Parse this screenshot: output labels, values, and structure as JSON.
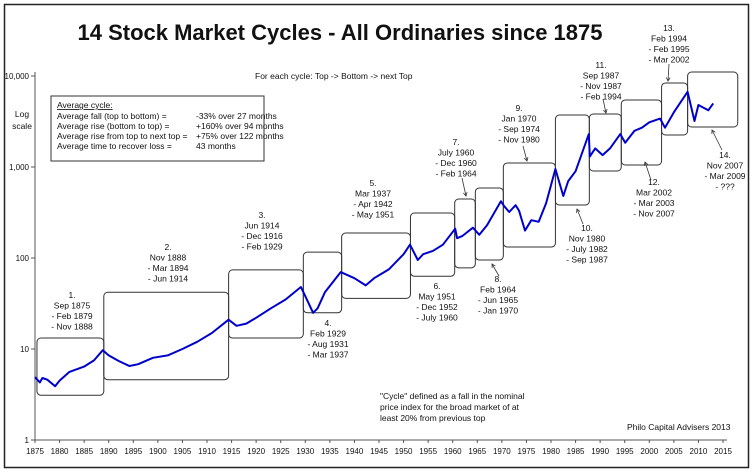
{
  "chart_data": {
    "type": "line",
    "title": "14 Stock Market Cycles - All Ordinaries  since 1875",
    "ylabel": [
      "Log",
      "scale"
    ],
    "xlabel": "",
    "yscale": "log",
    "ylim": [
      1,
      10000
    ],
    "xlim": [
      1875,
      2015
    ],
    "grid": false,
    "line_color": "#0000cc",
    "yticks": [
      1,
      10,
      100,
      1000,
      10000
    ],
    "ytick_labels": [
      "1",
      "10",
      "100",
      "1,000",
      "10,000"
    ],
    "xticks": [
      1875,
      1880,
      1885,
      1890,
      1895,
      1900,
      1905,
      1910,
      1915,
      1920,
      1925,
      1930,
      1935,
      1940,
      1945,
      1950,
      1955,
      1960,
      1965,
      1970,
      1975,
      1980,
      1985,
      1990,
      1995,
      2000,
      2005,
      2010,
      2015
    ],
    "series": [
      {
        "x": [
          1875,
          1876,
          1876.5,
          1877.5,
          1879.1,
          1880,
          1882,
          1885,
          1887,
          1888.8,
          1890,
          1892,
          1894.2,
          1896,
          1899,
          1902,
          1905,
          1908,
          1911,
          1914.4,
          1916,
          1918,
          1920,
          1923,
          1926,
          1929.1,
          1930,
          1931.6,
          1932.5,
          1934,
          1937.2,
          1940,
          1942.3,
          1944,
          1947,
          1950,
          1951.3,
          1952.9,
          1954,
          1956,
          1958,
          1960.5,
          1960.9,
          1962,
          1964.1,
          1965.4,
          1967,
          1969.8,
          1970.5,
          1971.5,
          1972.8,
          1973.5,
          1974.7,
          1976,
          1977.5,
          1979,
          1980.9,
          1982.5,
          1983.5,
          1985,
          1987.7,
          1987.9,
          1989,
          1990.5,
          1992,
          1994.1,
          1995.1,
          1997,
          1998.5,
          2000,
          2002.2,
          2003.2,
          2005,
          2007.8,
          2009.2,
          2010,
          2011,
          2012,
          2013
        ],
        "y": [
          4.9,
          4.3,
          4.8,
          4.6,
          3.9,
          4.5,
          5.6,
          6.4,
          7.5,
          9.7,
          8.5,
          7.4,
          6.5,
          6.8,
          8,
          8.5,
          10,
          12,
          15,
          21,
          18,
          19,
          22,
          28,
          35,
          48,
          38,
          25,
          28,
          42,
          70,
          60,
          50,
          60,
          75,
          110,
          140,
          95,
          110,
          120,
          140,
          210,
          165,
          175,
          215,
          180,
          230,
          420,
          370,
          320,
          380,
          330,
          200,
          260,
          250,
          400,
          950,
          480,
          700,
          900,
          2300,
          1300,
          1600,
          1350,
          1600,
          2300,
          1850,
          2500,
          2700,
          3100,
          3400,
          2700,
          4000,
          6700,
          3200,
          4800,
          4500,
          4200,
          5000
        ]
      }
    ],
    "cycle_boxes": [
      {
        "x": [
          1875.4,
          1889.0
        ],
        "y": [
          3.1,
          13.2
        ]
      },
      {
        "x": [
          1889.0,
          1914.4
        ],
        "y": [
          4.6,
          42
        ]
      },
      {
        "x": [
          1914.4,
          1929.6
        ],
        "y": [
          13.2,
          74
        ]
      },
      {
        "x": [
          1929.6,
          1937.4
        ],
        "y": [
          25,
          116
        ]
      },
      {
        "x": [
          1937.4,
          1951.4
        ],
        "y": [
          36,
          188
        ]
      },
      {
        "x": [
          1951.4,
          1960.4
        ],
        "y": [
          63,
          312
        ]
      },
      {
        "x": [
          1960.4,
          1964.6
        ],
        "y": [
          78,
          445
        ]
      },
      {
        "x": [
          1964.6,
          1970.3
        ],
        "y": [
          95,
          588
        ]
      },
      {
        "x": [
          1970.3,
          1980.9
        ],
        "y": [
          132,
          1107
        ]
      },
      {
        "x": [
          1980.9,
          1987.8
        ],
        "y": [
          382,
          3726
        ]
      },
      {
        "x": [
          1987.8,
          1994.3
        ],
        "y": [
          904,
          3822
        ]
      },
      {
        "x": [
          1994.3,
          2002.5
        ],
        "y": [
          1052,
          5450
        ]
      },
      {
        "x": [
          2002.5,
          2007.8
        ],
        "y": [
          2249,
          8380
        ]
      },
      {
        "x": [
          2007.8,
          2018.0
        ],
        "y": [
          2754,
          11060
        ]
      }
    ],
    "cycle_labels": [
      [
        "1.",
        "Sep 1875",
        "- Feb 1879",
        "- Nov 1888"
      ],
      [
        "2.",
        "Nov 1888",
        "- Mar 1894",
        "- Jun 1914"
      ],
      [
        "3.",
        "Jun 1914",
        "- Dec 1916",
        "- Feb 1929"
      ],
      [
        "4.",
        "Feb  1929",
        "- Aug 1931",
        "- Mar 1937"
      ],
      [
        "5.",
        "Mar 1937",
        "- Apr 1942",
        "- May 1951"
      ],
      [
        "6.",
        "May 1951",
        "- Dec 1952",
        "- July 1960"
      ],
      [
        "7.",
        "July 1960",
        "- Dec 1960",
        "- Feb 1964"
      ],
      [
        "8.",
        "Feb 1964",
        "- Jun 1965",
        "- Jan 1970"
      ],
      [
        "9.",
        "Jan 1970",
        "- Sep 1974",
        "- Nov 1980"
      ],
      [
        "10.",
        "Nov 1980",
        "- July 1982",
        "- Sep 1987"
      ],
      [
        "11.",
        "Sep 1987",
        "- Nov 1987",
        "- Feb 1994"
      ],
      [
        "12.",
        "Mar 2002",
        "- Mar 2003",
        "- Nov 2007"
      ],
      [
        "13.",
        "Feb 1994",
        "- Feb 1995",
        "- Mar 2002"
      ],
      [
        "14.",
        "Nov 2007",
        "- Mar 2009",
        "- ???"
      ]
    ],
    "annotations": {
      "cycle_direction": "For each cycle:   Top -> Bottom -> next Top",
      "average_box": {
        "heading": "Average cycle:",
        "rows": [
          {
            "label": "Average fall (top to bottom)  =",
            "value": "-33% over 27 months"
          },
          {
            "label": "Average rise (bottom to top) =",
            "value": "+160% over 94 months"
          },
          {
            "label": "Average rise from top to next top =",
            "value": "+75% over 122 months"
          },
          {
            "label": "Average time to recover loss =",
            "value": "43 months"
          }
        ]
      },
      "definition": [
        "\"Cycle\" defined as a fall in the nominal",
        "price index for the broad market  of at",
        "least 20% from previous top"
      ],
      "source": "Philo Capital Advisers 2013"
    }
  }
}
